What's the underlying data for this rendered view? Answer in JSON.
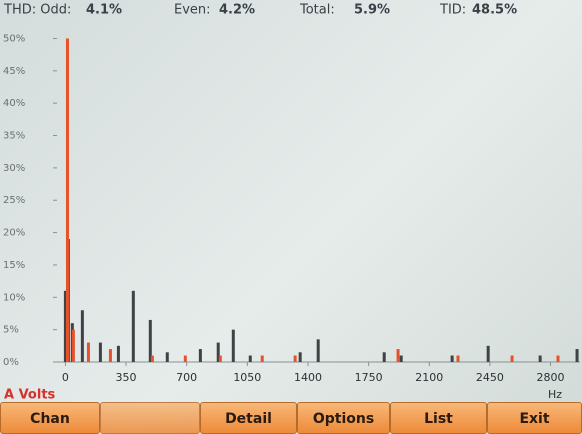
{
  "header": {
    "items": [
      {
        "label": "THD: Odd:",
        "value": "4.1%"
      },
      {
        "label": "Even:",
        "value": "4.2%"
      },
      {
        "label": "Total:",
        "value": "5.9%"
      },
      {
        "label": "TID:",
        "value": "48.5%"
      }
    ]
  },
  "chart_data": {
    "type": "bar",
    "y_label": "A Volts",
    "x_label": "Hz",
    "xlim": [
      -60,
      2970
    ],
    "xticks": [
      0,
      350,
      700,
      1050,
      1400,
      1750,
      2100,
      2450,
      2800
    ],
    "ylim": [
      0,
      51
    ],
    "yticks": [
      {
        "value": 0,
        "label": "0%"
      },
      {
        "value": 5,
        "label": "5%"
      },
      {
        "value": 10,
        "label": "10%"
      },
      {
        "value": 15,
        "label": "15%"
      },
      {
        "value": 20,
        "label": "20%"
      },
      {
        "value": 25,
        "label": "25%"
      },
      {
        "value": 30,
        "label": "30%"
      },
      {
        "value": 35,
        "label": "35%"
      },
      {
        "value": 40,
        "label": "40%"
      },
      {
        "value": 45,
        "label": "45%"
      },
      {
        "value": 50,
        "label": "50%"
      }
    ],
    "series": [
      {
        "color": "#3d4347",
        "x": [
          0,
          17,
          40,
          98,
          202,
          306,
          392,
          490,
          588,
          779,
          882,
          969,
          1067,
          1355,
          1459,
          1840,
          1938,
          2232,
          2440,
          2740,
          2953
        ],
        "values": [
          11,
          19,
          6,
          8,
          3,
          2.5,
          11,
          6.5,
          1.5,
          2,
          3,
          5,
          1,
          1.5,
          3.5,
          1.5,
          1,
          1,
          2.5,
          1,
          2
        ]
      },
      {
        "color": "#e8522a",
        "x": [
          12,
          46,
          133,
          260,
          502,
          692,
          894,
          1136,
          1326,
          1920,
          2266,
          2578,
          2843
        ],
        "values": [
          50,
          5,
          3,
          2,
          1,
          1,
          1,
          1,
          1,
          2,
          1,
          1,
          1
        ]
      }
    ]
  },
  "buttons": [
    "Chan",
    "Detail",
    "Options",
    "List",
    "Exit"
  ]
}
